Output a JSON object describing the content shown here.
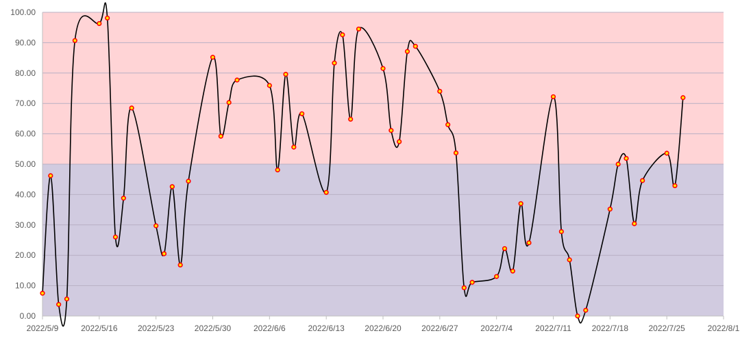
{
  "chart_data": {
    "type": "line",
    "title": "",
    "xlabel": "",
    "ylabel": "",
    "ylim": [
      0,
      100
    ],
    "y_ticks": [
      "0.00",
      "10.00",
      "20.00",
      "30.00",
      "40.00",
      "50.00",
      "60.00",
      "70.00",
      "80.00",
      "90.00",
      "100.00"
    ],
    "x_range": [
      "2022-05-09",
      "2022-08-01"
    ],
    "x_ticks": [
      "2022/5/9",
      "2022/5/16",
      "2022/5/23",
      "2022/5/30",
      "2022/6/6",
      "2022/6/13",
      "2022/6/20",
      "2022/6/27",
      "2022/7/4",
      "2022/7/11",
      "2022/7/18",
      "2022/7/25",
      "2022/8/1"
    ],
    "grid": true,
    "legend": "none",
    "bands": [
      {
        "from": 0,
        "to": 50,
        "color": "#d1cbe0"
      },
      {
        "from": 50,
        "to": 100,
        "color": "#ffd4d6"
      }
    ],
    "colors": {
      "line": "#000000",
      "marker_fill": "#ffe800",
      "marker_edge": "#ff0000"
    },
    "series": [
      {
        "x": [
          "2022-05-09",
          "2022-05-10",
          "2022-05-11",
          "2022-05-12",
          "2022-05-13",
          "2022-05-16",
          "2022-05-17",
          "2022-05-18",
          "2022-05-19",
          "2022-05-20",
          "2022-05-23",
          "2022-05-24",
          "2022-05-25",
          "2022-05-26",
          "2022-05-27",
          "2022-05-30",
          "2022-05-31",
          "2022-06-01",
          "2022-06-02",
          "2022-06-06",
          "2022-06-07",
          "2022-06-08",
          "2022-06-09",
          "2022-06-10",
          "2022-06-13",
          "2022-06-14",
          "2022-06-15",
          "2022-06-16",
          "2022-06-17",
          "2022-06-20",
          "2022-06-21",
          "2022-06-22",
          "2022-06-23",
          "2022-06-24",
          "2022-06-27",
          "2022-06-28",
          "2022-06-29",
          "2022-06-30",
          "2022-07-01",
          "2022-07-04",
          "2022-07-05",
          "2022-07-06",
          "2022-07-07",
          "2022-07-08",
          "2022-07-11",
          "2022-07-12",
          "2022-07-13",
          "2022-07-14",
          "2022-07-15",
          "2022-07-18",
          "2022-07-19",
          "2022-07-20",
          "2022-07-21",
          "2022-07-22",
          "2022-07-25",
          "2022-07-26",
          "2022-07-27"
        ],
        "values": [
          7.5,
          46.2,
          3.8,
          5.6,
          90.7,
          96.3,
          98.1,
          26.0,
          38.8,
          68.5,
          29.7,
          20.5,
          42.6,
          16.8,
          44.4,
          85.2,
          59.2,
          70.3,
          77.7,
          75.9,
          48.1,
          79.6,
          55.6,
          66.6,
          40.7,
          83.3,
          92.6,
          64.8,
          94.5,
          81.5,
          61.1,
          57.4,
          87.1,
          88.8,
          74.0,
          63.0,
          53.7,
          9.3,
          11.1,
          13.0,
          22.2,
          14.8,
          37.0,
          24.1,
          72.2,
          27.8,
          18.5,
          0.0,
          1.9,
          35.2,
          50.0,
          51.9,
          30.4,
          44.6,
          53.6,
          42.9,
          71.9
        ]
      }
    ]
  }
}
